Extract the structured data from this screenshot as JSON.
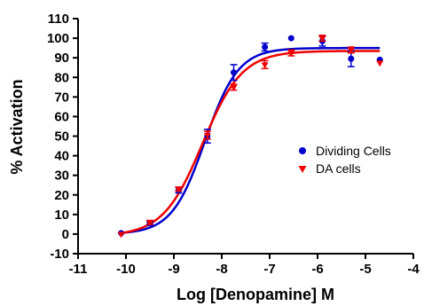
{
  "chart_data": {
    "type": "scatter",
    "title": "",
    "xlabel": "Log [Denopamine] M",
    "ylabel": "% Activation",
    "xlim": [
      -11,
      -4
    ],
    "ylim": [
      -10,
      110
    ],
    "xticks": [
      -11,
      -10,
      -9,
      -8,
      -7,
      -6,
      -5,
      -4
    ],
    "yticks": [
      -10,
      0,
      10,
      20,
      30,
      40,
      50,
      60,
      70,
      80,
      90,
      100,
      110
    ],
    "grid": false,
    "legend_position": "center-right",
    "series": [
      {
        "name": "Dividing Cells",
        "marker": "circle",
        "color": "#0000cc",
        "x": [
          -10.1,
          -9.5,
          -8.9,
          -8.3,
          -7.75,
          -7.1,
          -6.55,
          -5.9,
          -5.3,
          -4.7
        ],
        "y": [
          0.5,
          5.5,
          22.5,
          50.0,
          82.5,
          95.5,
          100.0,
          98.5,
          89.5,
          89.0
        ],
        "err": [
          0.5,
          1.0,
          1.5,
          3.5,
          4.0,
          2.0,
          0.5,
          2.5,
          4.0,
          0.5
        ],
        "fit": {
          "bottom": 0.0,
          "top": 95.0,
          "logEC50": -8.35,
          "hill": 1.25
        }
      },
      {
        "name": "DA cells",
        "marker": "triangle-down",
        "color": "#ee0000",
        "x": [
          -10.1,
          -9.5,
          -8.9,
          -8.3,
          -7.75,
          -7.1,
          -6.55,
          -5.9,
          -5.3,
          -4.7
        ],
        "y": [
          0.0,
          6.0,
          23.0,
          50.5,
          75.0,
          86.5,
          92.5,
          100.0,
          94.0,
          87.5
        ],
        "err": [
          0.5,
          1.0,
          1.0,
          2.0,
          1.5,
          2.0,
          1.5,
          1.5,
          1.5,
          0.5
        ],
        "fit": {
          "bottom": -1.0,
          "top": 93.5,
          "logEC50": -8.4,
          "hill": 1.05
        }
      }
    ]
  }
}
